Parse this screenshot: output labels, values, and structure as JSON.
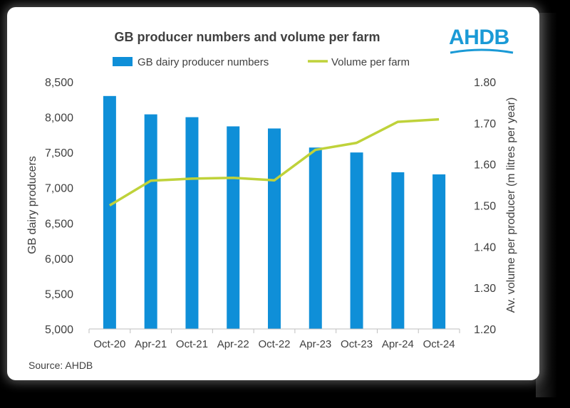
{
  "chart_data": {
    "type": "bar+line",
    "title": "GB producer numbers and volume per farm",
    "categories": [
      "Oct-20",
      "Apr-21",
      "Oct-21",
      "Apr-22",
      "Oct-22",
      "Apr-23",
      "Oct-23",
      "Apr-24",
      "Oct-24"
    ],
    "series": [
      {
        "name": "GB dairy producer numbers",
        "kind": "bar",
        "axis": "left",
        "color": "#0f8fd8",
        "values": [
          8300,
          8040,
          8000,
          7870,
          7840,
          7570,
          7500,
          7220,
          7190
        ]
      },
      {
        "name": "Volume per farm",
        "kind": "line",
        "axis": "right",
        "color": "#bfd23a",
        "values": [
          1.5,
          1.56,
          1.565,
          1.567,
          1.561,
          1.635,
          1.652,
          1.703,
          1.709
        ]
      }
    ],
    "ylabel": "GB dairy producers",
    "y2label": "Av. volume per producer (m litres per year)",
    "ylim": [
      5000,
      8500
    ],
    "y2lim": [
      1.2,
      1.8
    ],
    "yticks": [
      "5,000",
      "5,500",
      "6,000",
      "6,500",
      "7,000",
      "7,500",
      "8,000",
      "8,500"
    ],
    "y2ticks": [
      "1.20",
      "1.30",
      "1.40",
      "1.50",
      "1.60",
      "1.70",
      "1.80"
    ],
    "legend_position": "top",
    "grid": false
  },
  "source": "Source: AHDB",
  "logo_text": "AHDB"
}
